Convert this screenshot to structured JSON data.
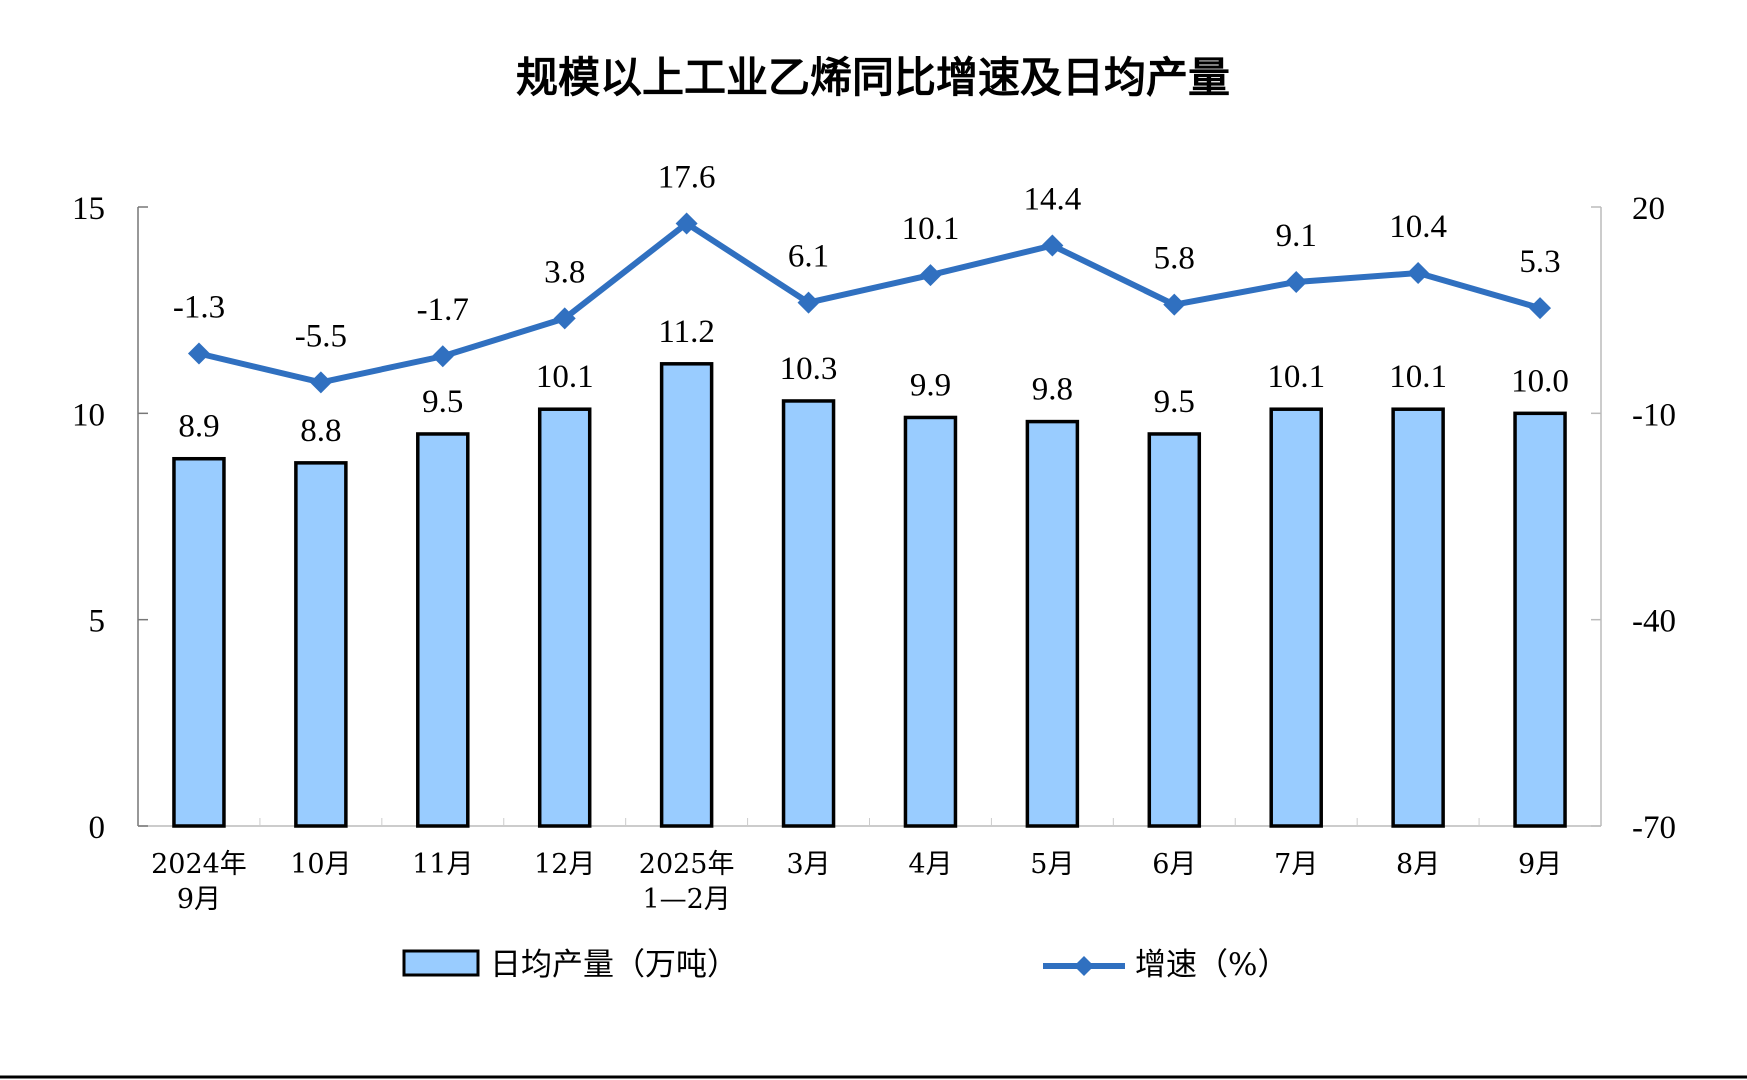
{
  "chart_data": {
    "type": "bar+line",
    "title": "规模以上工业乙烯同比增速及日均产量",
    "categories": [
      [
        "2024年",
        "9月"
      ],
      [
        "10月"
      ],
      [
        "11月"
      ],
      [
        "12月"
      ],
      [
        "2025年",
        "1—2月"
      ],
      [
        "3月"
      ],
      [
        "4月"
      ],
      [
        "5月"
      ],
      [
        "6月"
      ],
      [
        "7月"
      ],
      [
        "8月"
      ],
      [
        "9月"
      ]
    ],
    "series": [
      {
        "name": "日均产量（万吨）",
        "type": "bar",
        "axis": "left",
        "color": "#99CCFF",
        "values": [
          8.9,
          8.8,
          9.5,
          10.1,
          11.2,
          10.3,
          9.9,
          9.8,
          9.5,
          10.1,
          10.1,
          10.0
        ],
        "labels": [
          "8.9",
          "8.8",
          "9.5",
          "10.1",
          "11.2",
          "10.3",
          "9.9",
          "9.8",
          "9.5",
          "10.1",
          "10.1",
          "10.0"
        ]
      },
      {
        "name": "增速（%）",
        "type": "line",
        "axis": "right",
        "color": "#3070C0",
        "values": [
          -1.3,
          -5.5,
          -1.7,
          3.8,
          17.6,
          6.1,
          10.1,
          14.4,
          5.8,
          9.1,
          10.4,
          5.3
        ],
        "labels": [
          "-1.3",
          "-5.5",
          "-1.7",
          "3.8",
          "17.6",
          "6.1",
          "10.1",
          "14.4",
          "5.8",
          "9.1",
          "10.4",
          "5.3"
        ]
      }
    ],
    "y_left": {
      "range": [
        0,
        15
      ],
      "ticks": [
        "0",
        "5",
        "10",
        "15"
      ]
    },
    "y_right": {
      "range": [
        -70,
        20
      ],
      "ticks": [
        "-70",
        "-40",
        "-10",
        "20"
      ]
    },
    "legend": {
      "placement": "bottom",
      "items": [
        "日均产量（万吨）",
        "增速（%）"
      ]
    },
    "grid": false
  }
}
